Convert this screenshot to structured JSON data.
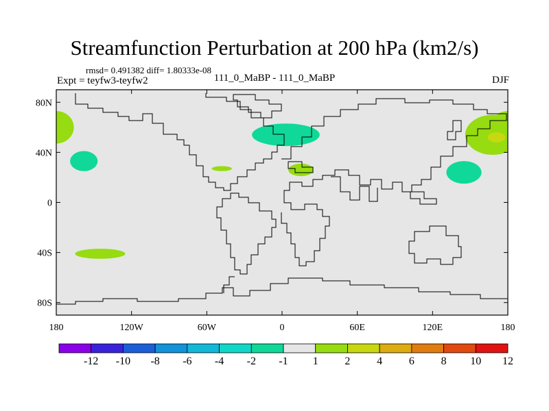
{
  "chart_data": {
    "type": "heatmap",
    "title": "Streamfunction Perturbation at 200 hPa (km2/s)",
    "stats_line": "rmsd= 0.491382 diff= 1.80333e-08",
    "experiment_line": "Expt = teyfw3-teyfw2",
    "subtitle": "111_0_MaBP - 111_0_MaBP",
    "season": "DJF",
    "x_range": [
      -180,
      180
    ],
    "y_range": [
      -90,
      90
    ],
    "x_ticks": [
      {
        "value": -180,
        "label": "180"
      },
      {
        "value": -120,
        "label": "120W"
      },
      {
        "value": -60,
        "label": "60W"
      },
      {
        "value": 0,
        "label": "0"
      },
      {
        "value": 60,
        "label": "60E"
      },
      {
        "value": 120,
        "label": "120E"
      },
      {
        "value": 180,
        "label": "180"
      }
    ],
    "y_ticks": [
      {
        "value": 80,
        "label": "80N"
      },
      {
        "value": 40,
        "label": "40N"
      },
      {
        "value": 0,
        "label": "0"
      },
      {
        "value": -40,
        "label": "40S"
      },
      {
        "value": -80,
        "label": "80S"
      }
    ],
    "colorbar": {
      "levels": [
        "-12",
        "-10",
        "-8",
        "-6",
        "-4",
        "-2",
        "-1",
        "1",
        "2",
        "4",
        "6",
        "8",
        "10",
        "12"
      ],
      "colors": [
        "#8a00e8",
        "#3a22dc",
        "#1a5fd8",
        "#1292d8",
        "#12b8d8",
        "#10d8c8",
        "#10d898",
        "#e6e6e6",
        "#96dc10",
        "#c8d810",
        "#ddac10",
        "#e07c10",
        "#e04a10",
        "#e01212"
      ]
    },
    "regions": [
      {
        "name": "north-pacific-west-positive",
        "lon": -180,
        "lat": 60,
        "rlon": 14,
        "rlat": 13,
        "color": "#96dc10",
        "value_range": "1 to 2"
      },
      {
        "name": "north-pacific-negative",
        "lon": -158,
        "lat": 33,
        "rlon": 11,
        "rlat": 8,
        "color": "#10d898",
        "value_range": "-2 to -1"
      },
      {
        "name": "atlantic-small-positive",
        "lon": -48,
        "lat": 27,
        "rlon": 8,
        "rlat": 2,
        "color": "#96dc10",
        "value_range": "1 to 2"
      },
      {
        "name": "europe-negative",
        "lon": 3,
        "lat": 54,
        "rlon": 27,
        "rlat": 9,
        "color": "#10d898",
        "value_range": "-2 to -1"
      },
      {
        "name": "mediterranean-positive",
        "lon": 15,
        "lat": 26,
        "rlon": 10,
        "rlat": 5,
        "color": "#96dc10",
        "value_range": "1 to 2"
      },
      {
        "name": "east-asia-negative",
        "lon": 145,
        "lat": 24,
        "rlon": 14,
        "rlat": 9,
        "color": "#10d898",
        "value_range": "-2 to -1"
      },
      {
        "name": "north-pacific-east-positive",
        "lon": 168,
        "lat": 54,
        "rlon": 22,
        "rlat": 16,
        "color": "#96dc10",
        "value_range": "1 to 2"
      },
      {
        "name": "north-pacific-east-core",
        "lon": 171,
        "lat": 52,
        "rlon": 7,
        "rlat": 4,
        "color": "#c8d810",
        "value_range": "2 to 4"
      },
      {
        "name": "south-pacific-positive",
        "lon": -145,
        "lat": -41,
        "rlon": 20,
        "rlat": 4,
        "color": "#96dc10",
        "value_range": "1 to 2"
      }
    ]
  }
}
